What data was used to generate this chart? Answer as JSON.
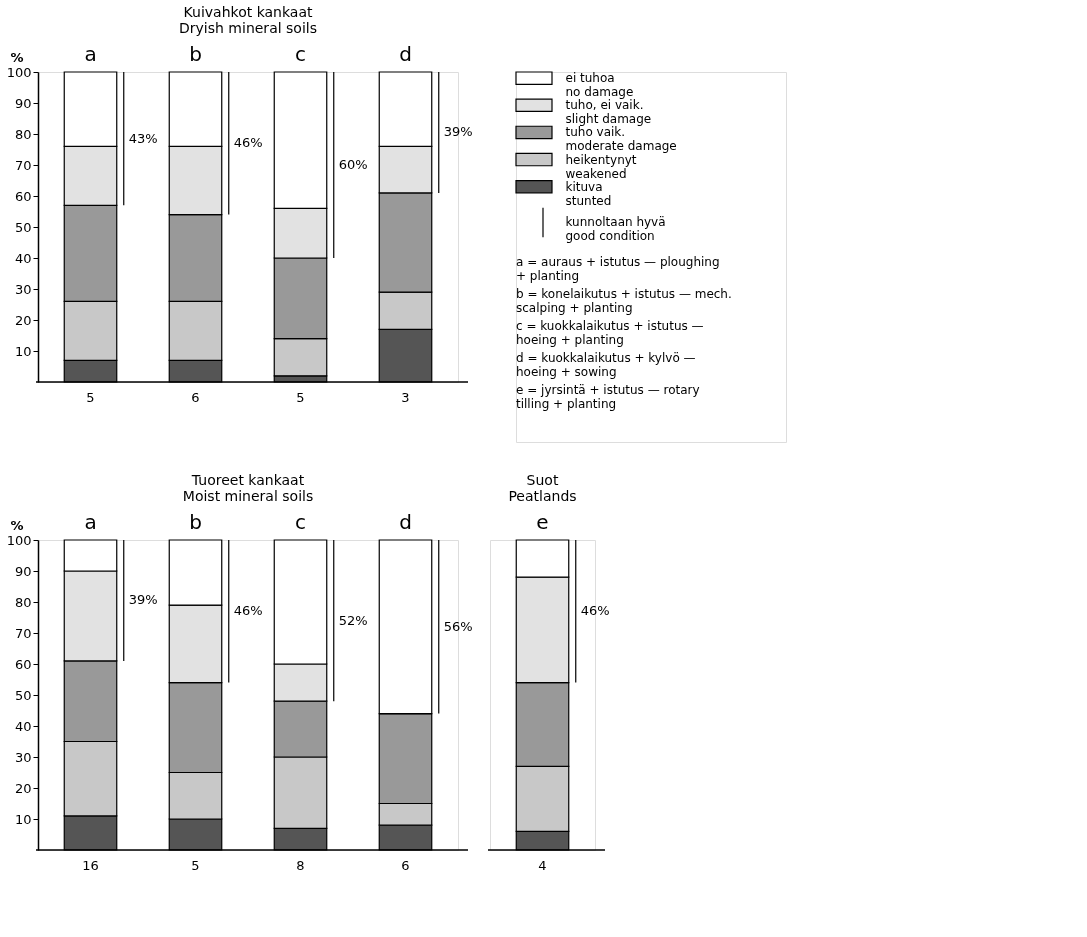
{
  "chart_data": [
    {
      "type": "bar",
      "stacked": true,
      "title": "Kuivahkot kankaat\nDryish mineral soils",
      "ylabel": "%",
      "categories": [
        "a",
        "b",
        "c",
        "d"
      ],
      "ylim": [
        0,
        100
      ],
      "yticks": [
        10,
        20,
        30,
        40,
        50,
        60,
        70,
        80,
        90,
        100
      ],
      "grid": false,
      "legend": "right",
      "series": [
        {
          "name": "kituva\nstunted",
          "color": "#555555",
          "values": [
            7,
            7,
            2,
            17
          ]
        },
        {
          "name": "heikentynyt\nweakened",
          "color": "#c8c8c8",
          "values": [
            19,
            19,
            12,
            12
          ]
        },
        {
          "name": "tuho vaik.\nmoderate damage",
          "color": "#999999",
          "values": [
            31,
            28,
            26,
            32
          ]
        },
        {
          "name": "tuho, ei vaik.\nslight damage",
          "color": "#e2e2e2",
          "values": [
            19,
            22,
            16,
            15
          ]
        },
        {
          "name": "ei tuhoa\nno damage",
          "color": "#ffffff",
          "values": [
            24,
            24,
            44,
            24
          ]
        }
      ],
      "annotations": [
        "43%",
        "46%",
        "60%",
        "39%",
        "5",
        "6",
        "5",
        "3",
        "kunnoltaan hyvä\ngood condition",
        "a = auraus + istutus — ploughing\n      + planting",
        "b = konelaikutus + istutus — mech.\n      scalping + planting",
        "c = kuokkalaikutus + istutus —\n      hoeing + planting",
        "d = kuokkalaikutus + kylvö —\n      hoeing + sowing",
        "e = jyrsintä + istutus — rotary\n      tilling + planting"
      ]
    },
    {
      "type": "bar",
      "stacked": true,
      "title": "Tuoreet kankaat\nMoist mineral soils",
      "ylabel": "%",
      "categories": [
        "a",
        "b",
        "c",
        "d"
      ],
      "ylim": [
        0,
        100
      ],
      "yticks": [
        10,
        20,
        30,
        40,
        50,
        60,
        70,
        80,
        90,
        100
      ],
      "grid": false,
      "series": [
        {
          "color": "#555555",
          "values": [
            11,
            10,
            7,
            8
          ]
        },
        {
          "color": "#c8c8c8",
          "values": [
            24,
            15,
            23,
            7
          ]
        },
        {
          "color": "#999999",
          "values": [
            26,
            29,
            18,
            29
          ]
        },
        {
          "color": "#e2e2e2",
          "values": [
            29,
            25,
            12,
            0
          ]
        },
        {
          "color": "#ffffff",
          "values": [
            10,
            21,
            40,
            56
          ]
        }
      ],
      "annotations": [
        "39%",
        "46%",
        "52%",
        "56%",
        "16",
        "5",
        "8",
        "6"
      ]
    },
    {
      "type": "bar",
      "stacked": true,
      "title": "Suot\nPeatlands",
      "categories": [
        "e"
      ],
      "ylim": [
        0,
        100
      ],
      "tick_labels": "x",
      "grid": false,
      "series": [
        {
          "color": "#555555",
          "values": [
            6
          ]
        },
        {
          "color": "#c8c8c8",
          "values": [
            21
          ]
        },
        {
          "color": "#999999",
          "values": [
            27
          ]
        },
        {
          "color": "#e2e2e2",
          "values": [
            34
          ]
        },
        {
          "color": "#ffffff",
          "values": [
            12
          ]
        }
      ],
      "annotations": [
        "46%",
        "4"
      ]
    }
  ]
}
